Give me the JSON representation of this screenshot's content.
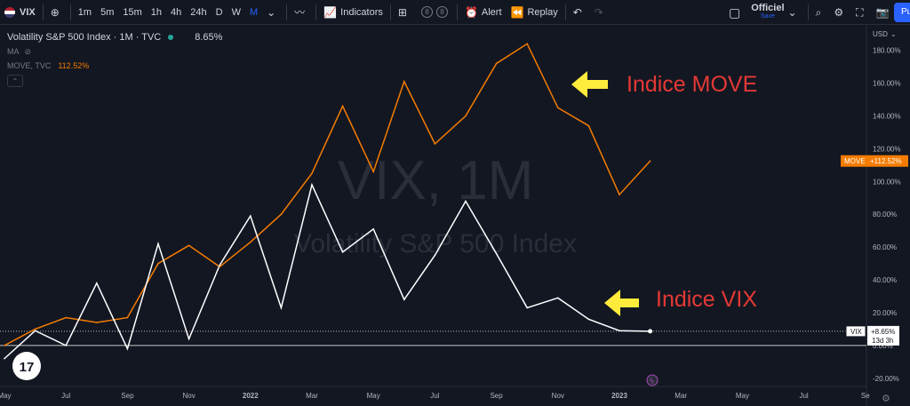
{
  "toolbar": {
    "symbol": "VIX",
    "intervals": [
      "1m",
      "5m",
      "15m",
      "1h",
      "4h",
      "24h",
      "D",
      "W",
      "M"
    ],
    "active_interval": "M",
    "indicators_label": "Indicators",
    "circle_a": "8",
    "circle_b": "8",
    "alert_label": "Alert",
    "replay_label": "Replay",
    "layout_title": "Officiel",
    "layout_sub": "Save",
    "publish_label": "Pu"
  },
  "legend": {
    "title": "Volatility S&P 500 Index · 1M · TVC",
    "value": "8.65%",
    "ma_label": "MA",
    "move_label": "MOVE, TVC",
    "move_value": "112.52%"
  },
  "watermark": {
    "line1": "VIX, 1M",
    "line2": "Volatility S&P 500 Index"
  },
  "annotations": {
    "move": "Indice MOVE",
    "vix": "Indice VIX"
  },
  "price_scale": {
    "currency": "USD",
    "move_tag_name": "MOVE",
    "move_tag_value": "+112.52%",
    "vix_tag_name": "VIX",
    "vix_tag_value": "+8.65%",
    "vix_tag_time": "13d 3h"
  },
  "colors": {
    "background": "#131722",
    "move_line": "#f57c00",
    "vix_line": "#ffffff",
    "annotation_text": "#e53935",
    "arrow": "#ffeb3b"
  },
  "chart_data": {
    "type": "line",
    "x_ticks": [
      "May",
      "Jul",
      "Sep",
      "Nov",
      "2022",
      "Mar",
      "May",
      "Jul",
      "Sep",
      "Nov",
      "2023",
      "Mar",
      "May",
      "Jul",
      "Se"
    ],
    "y_ticks": [
      "180.00%",
      "160.00%",
      "140.00%",
      "120.00%",
      "100.00%",
      "80.00%",
      "60.00%",
      "40.00%",
      "20.00%",
      "0.00%",
      "-20.00%"
    ],
    "ylim": [
      -25,
      195
    ],
    "series": [
      {
        "name": "MOVE",
        "x": [
          0,
          1,
          2,
          3,
          4,
          5,
          6,
          7,
          8,
          9,
          10,
          11,
          12,
          13,
          14,
          15,
          16,
          17,
          18,
          19,
          20,
          21
        ],
        "values": [
          0,
          10,
          17,
          14,
          17,
          50,
          61,
          48,
          63,
          80,
          105,
          146,
          106,
          161,
          123,
          140,
          172,
          184,
          145,
          134,
          92,
          112.52
        ]
      },
      {
        "name": "VIX",
        "x": [
          0,
          1,
          2,
          3,
          4,
          5,
          6,
          7,
          8,
          9,
          10,
          11,
          12,
          13,
          14,
          15,
          16,
          17,
          18,
          19,
          20,
          21
        ],
        "values": [
          -8,
          9,
          0,
          38,
          -2,
          62,
          4,
          49,
          79,
          23,
          98,
          57,
          71,
          28,
          55,
          88,
          56,
          23,
          29,
          16,
          9,
          8.65
        ]
      }
    ]
  }
}
